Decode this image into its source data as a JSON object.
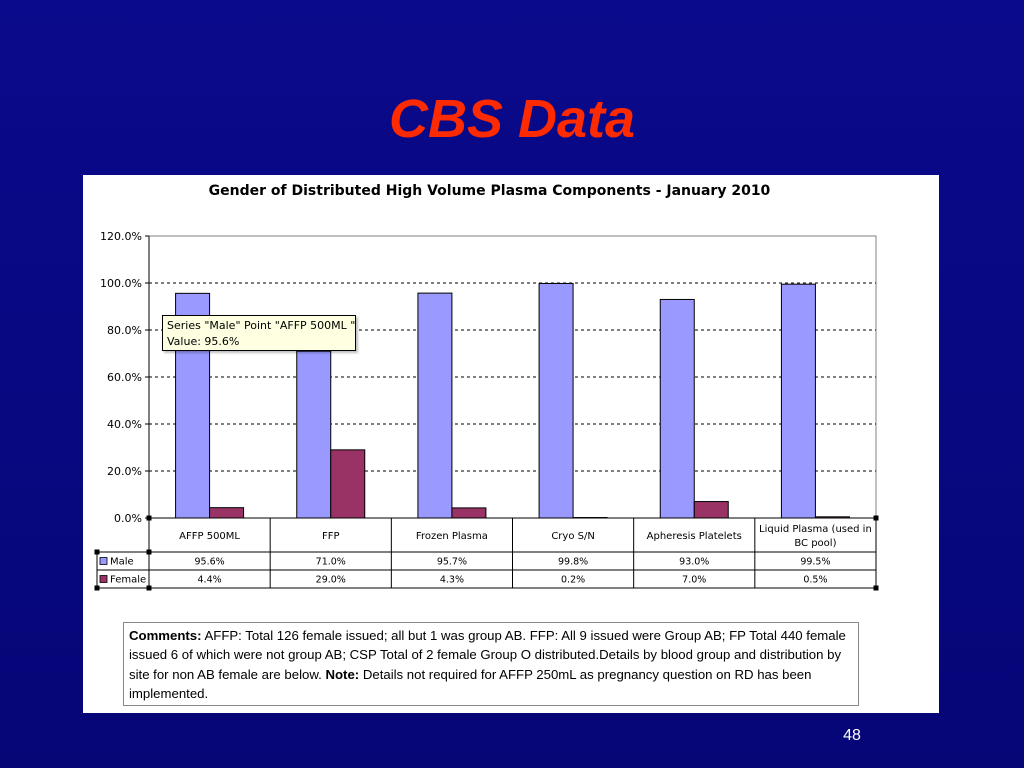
{
  "slide": {
    "title": "CBS Data",
    "page_number": "48"
  },
  "chart_data": {
    "type": "bar",
    "title": "Gender of Distributed High Volume Plasma Components - January 2010",
    "categories": [
      "AFFP 500ML",
      "FFP",
      "Frozen Plasma",
      "Cryo S/N",
      "Apheresis Platelets",
      "Liquid Plasma (used in BC pool)"
    ],
    "series": [
      {
        "name": "Male",
        "values": [
          95.6,
          71.0,
          95.7,
          99.8,
          93.0,
          99.5
        ],
        "labels": [
          "95.6%",
          "71.0%",
          "95.7%",
          "99.8%",
          "93.0%",
          "99.5%"
        ],
        "color": "#9999ff"
      },
      {
        "name": "Female",
        "values": [
          4.4,
          29.0,
          4.3,
          0.2,
          7.0,
          0.5
        ],
        "labels": [
          "4.4%",
          "29.0%",
          "4.3%",
          "0.2%",
          "7.0%",
          "0.5%"
        ],
        "color": "#993366"
      }
    ],
    "ylim": [
      0,
      120
    ],
    "yticks": [
      "0.0%",
      "20.0%",
      "40.0%",
      "60.0%",
      "80.0%",
      "100.0%",
      "120.0%"
    ],
    "grid": true,
    "data_table": true
  },
  "tooltip": {
    "line1": "Series \"Male\" Point \"AFFP 500ML \"",
    "line2": "Value: 95.6%"
  },
  "comments": {
    "label": "Comments:",
    "text1": " AFFP: Total 126 female issued; all but 1 was group AB. FFP: All 9 issued were Group AB; FP Total 440 female issued 6 of which were not group AB; CSP Total of 2 female Group O distributed.Details by blood group and distribution by site for non AB female are below. ",
    "note_label": "Note:",
    "text2": " Details not required for AFFP 250mL as pregnancy question on RD has been implemented."
  }
}
